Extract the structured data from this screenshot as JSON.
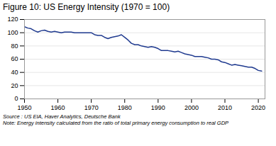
{
  "chart_data": {
    "type": "line",
    "title": "Figure 10: US Energy Intensity (1970 = 100)",
    "caption": "Source : US EIA, Haver Analytics, Deutsche Bank\nNote: Energy intensity calculated from the ratio of total primary energy consumption to real GDP",
    "x": [
      1950,
      1951,
      1952,
      1953,
      1954,
      1955,
      1956,
      1957,
      1958,
      1959,
      1960,
      1961,
      1962,
      1963,
      1964,
      1965,
      1966,
      1967,
      1968,
      1969,
      1970,
      1971,
      1972,
      1973,
      1974,
      1975,
      1976,
      1977,
      1978,
      1979,
      1980,
      1981,
      1982,
      1983,
      1984,
      1985,
      1986,
      1987,
      1988,
      1989,
      1990,
      1991,
      1992,
      1993,
      1994,
      1995,
      1996,
      1997,
      1998,
      1999,
      2000,
      2001,
      2002,
      2003,
      2004,
      2005,
      2006,
      2007,
      2008,
      2009,
      2010,
      2011,
      2012,
      2013,
      2014,
      2015,
      2016,
      2017,
      2018,
      2019,
      2020,
      2021
    ],
    "values": [
      109,
      107,
      106,
      103,
      101,
      103,
      104,
      102,
      101,
      102,
      101,
      100,
      101,
      101,
      101,
      100,
      100,
      100,
      100,
      100,
      100,
      97,
      96,
      96,
      93,
      91,
      93,
      94,
      95,
      97,
      93,
      89,
      84,
      82,
      82,
      80,
      79,
      78,
      79,
      78,
      76,
      73,
      73,
      73,
      72,
      71,
      72,
      70,
      68,
      67,
      66,
      64,
      64,
      64,
      63,
      62,
      60,
      60,
      59,
      56,
      55,
      53,
      51,
      52,
      51,
      50,
      49,
      48,
      48,
      46,
      43,
      42
    ],
    "color": "#1f3a8f",
    "xlim": [
      1950,
      2022
    ],
    "ylim": [
      0,
      120
    ],
    "xticks": [
      1950,
      1960,
      1970,
      1980,
      1990,
      2000,
      2010,
      2020
    ],
    "yticks": [
      0,
      20,
      40,
      60,
      80,
      100,
      120
    ],
    "grid": true
  }
}
